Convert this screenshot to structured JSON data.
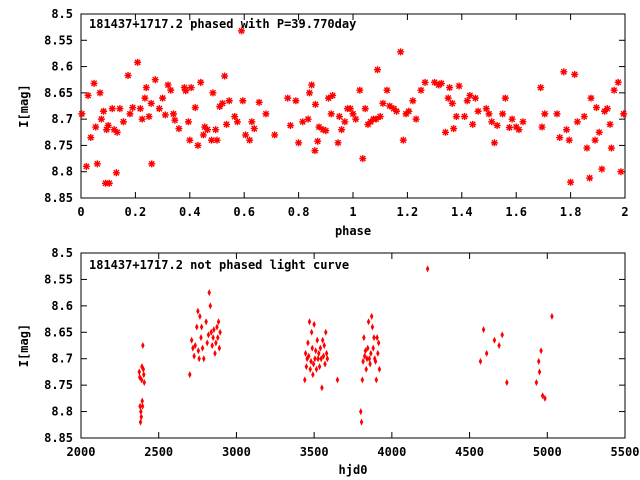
{
  "chart_data": [
    {
      "type": "scatter",
      "title": "181437+1717.2 phased with P=39.770day",
      "xlabel": "phase",
      "ylabel": "I[mag]",
      "xlim": [
        0,
        2
      ],
      "ylim": [
        8.5,
        8.85
      ],
      "y_inverted": true,
      "x_ticks": [
        0,
        0.2,
        0.4,
        0.6,
        0.8,
        1,
        1.2,
        1.4,
        1.6,
        1.8,
        2
      ],
      "x_tick_labels": [
        "0",
        "0.2",
        "0.4",
        "0.6",
        "0.8",
        "1",
        "1.2",
        "1.4",
        "1.6",
        "1.8",
        "2"
      ],
      "y_ticks": [
        8.5,
        8.55,
        8.6,
        8.65,
        8.7,
        8.75,
        8.8,
        8.85
      ],
      "y_tick_labels": [
        "8.5",
        "8.55",
        "8.6",
        "8.65",
        "8.7",
        "8.75",
        "8.8",
        "8.85"
      ],
      "grid": false,
      "marker": "star",
      "color": "#ff0000",
      "points": [
        [
          0.003,
          8.69
        ],
        [
          0.02,
          8.79
        ],
        [
          0.026,
          8.655
        ],
        [
          0.036,
          8.735
        ],
        [
          0.048,
          8.632
        ],
        [
          0.054,
          8.715
        ],
        [
          0.06,
          8.785
        ],
        [
          0.07,
          8.65
        ],
        [
          0.075,
          8.7
        ],
        [
          0.083,
          8.685
        ],
        [
          0.09,
          8.822
        ],
        [
          0.094,
          8.72
        ],
        [
          0.1,
          8.712
        ],
        [
          0.104,
          8.822
        ],
        [
          0.115,
          8.68
        ],
        [
          0.122,
          8.72
        ],
        [
          0.13,
          8.802
        ],
        [
          0.133,
          8.725
        ],
        [
          0.143,
          8.68
        ],
        [
          0.156,
          8.705
        ],
        [
          0.173,
          8.617
        ],
        [
          0.18,
          8.69
        ],
        [
          0.19,
          8.678
        ],
        [
          0.208,
          8.592
        ],
        [
          0.218,
          8.68
        ],
        [
          0.225,
          8.7
        ],
        [
          0.235,
          8.66
        ],
        [
          0.24,
          8.64
        ],
        [
          0.25,
          8.695
        ],
        [
          0.258,
          8.67
        ],
        [
          0.26,
          8.785
        ],
        [
          0.273,
          8.625
        ],
        [
          0.288,
          8.68
        ],
        [
          0.3,
          8.66
        ],
        [
          0.31,
          8.692
        ],
        [
          0.32,
          8.635
        ],
        [
          0.33,
          8.645
        ],
        [
          0.34,
          8.69
        ],
        [
          0.345,
          8.702
        ],
        [
          0.36,
          8.718
        ],
        [
          0.38,
          8.64
        ],
        [
          0.385,
          8.646
        ],
        [
          0.395,
          8.705
        ],
        [
          0.4,
          8.74
        ],
        [
          0.405,
          8.64
        ],
        [
          0.42,
          8.678
        ],
        [
          0.43,
          8.75
        ],
        [
          0.44,
          8.63
        ],
        [
          0.45,
          8.73
        ],
        [
          0.455,
          8.715
        ],
        [
          0.465,
          8.72
        ],
        [
          0.48,
          8.74
        ],
        [
          0.485,
          8.65
        ],
        [
          0.495,
          8.72
        ],
        [
          0.5,
          8.74
        ],
        [
          0.51,
          8.676
        ],
        [
          0.52,
          8.67
        ],
        [
          0.528,
          8.618
        ],
        [
          0.535,
          8.71
        ],
        [
          0.545,
          8.665
        ],
        [
          0.565,
          8.695
        ],
        [
          0.575,
          8.705
        ],
        [
          0.59,
          8.532
        ],
        [
          0.595,
          8.665
        ],
        [
          0.605,
          8.73
        ],
        [
          0.62,
          8.74
        ],
        [
          0.628,
          8.705
        ],
        [
          0.637,
          8.718
        ],
        [
          0.655,
          8.668
        ],
        [
          0.68,
          8.69
        ],
        [
          0.712,
          8.73
        ],
        [
          0.76,
          8.66
        ],
        [
          0.77,
          8.712
        ],
        [
          0.79,
          8.665
        ],
        [
          0.8,
          8.745
        ],
        [
          0.815,
          8.705
        ],
        [
          0.835,
          8.7
        ],
        [
          0.84,
          8.65
        ],
        [
          0.848,
          8.635
        ],
        [
          0.86,
          8.76
        ],
        [
          0.862,
          8.672
        ],
        [
          0.87,
          8.742
        ],
        [
          0.875,
          8.715
        ],
        [
          0.89,
          8.72
        ],
        [
          0.9,
          8.722
        ],
        [
          0.91,
          8.66
        ],
        [
          0.92,
          8.69
        ],
        [
          0.925,
          8.655
        ],
        [
          0.945,
          8.745
        ],
        [
          0.95,
          8.695
        ],
        [
          0.958,
          8.72
        ],
        [
          0.97,
          8.705
        ],
        [
          0.98,
          8.68
        ],
        [
          0.99,
          8.68
        ],
        [
          1.0,
          8.69
        ],
        [
          1.01,
          8.7
        ],
        [
          1.025,
          8.645
        ],
        [
          1.036,
          8.775
        ],
        [
          1.045,
          8.68
        ],
        [
          1.055,
          8.71
        ],
        [
          1.065,
          8.705
        ],
        [
          1.075,
          8.7
        ],
        [
          1.085,
          8.7
        ],
        [
          1.09,
          8.606
        ],
        [
          1.1,
          8.695
        ],
        [
          1.11,
          8.67
        ],
        [
          1.125,
          8.645
        ],
        [
          1.135,
          8.675
        ],
        [
          1.15,
          8.68
        ],
        [
          1.16,
          8.685
        ],
        [
          1.175,
          8.572
        ],
        [
          1.185,
          8.74
        ],
        [
          1.195,
          8.69
        ],
        [
          1.205,
          8.685
        ],
        [
          1.22,
          8.665
        ],
        [
          1.232,
          8.7
        ],
        [
          1.25,
          8.645
        ],
        [
          1.265,
          8.63
        ],
        [
          1.3,
          8.63
        ],
        [
          1.315,
          8.635
        ],
        [
          1.325,
          8.632
        ],
        [
          1.34,
          8.725
        ],
        [
          1.35,
          8.66
        ],
        [
          1.355,
          8.64
        ],
        [
          1.365,
          8.67
        ],
        [
          1.37,
          8.718
        ],
        [
          1.38,
          8.695
        ],
        [
          1.39,
          8.637
        ],
        [
          1.41,
          8.695
        ],
        [
          1.42,
          8.665
        ],
        [
          1.43,
          8.655
        ],
        [
          1.44,
          8.71
        ],
        [
          1.45,
          8.66
        ],
        [
          1.46,
          8.685
        ],
        [
          1.49,
          8.68
        ],
        [
          1.5,
          8.69
        ],
        [
          1.51,
          8.705
        ],
        [
          1.52,
          8.745
        ],
        [
          1.53,
          8.712
        ],
        [
          1.55,
          8.69
        ],
        [
          1.56,
          8.66
        ],
        [
          1.575,
          8.716
        ],
        [
          1.585,
          8.7
        ],
        [
          1.6,
          8.715
        ],
        [
          1.61,
          8.72
        ],
        [
          1.625,
          8.705
        ],
        [
          1.69,
          8.64
        ],
        [
          1.695,
          8.715
        ],
        [
          1.705,
          8.69
        ],
        [
          1.75,
          8.69
        ],
        [
          1.76,
          8.735
        ],
        [
          1.775,
          8.61
        ],
        [
          1.785,
          8.72
        ],
        [
          1.795,
          8.74
        ],
        [
          1.8,
          8.82
        ],
        [
          1.815,
          8.615
        ],
        [
          1.825,
          8.705
        ],
        [
          1.85,
          8.695
        ],
        [
          1.86,
          8.755
        ],
        [
          1.87,
          8.812
        ],
        [
          1.875,
          8.66
        ],
        [
          1.89,
          8.74
        ],
        [
          1.895,
          8.678
        ],
        [
          1.905,
          8.725
        ],
        [
          1.915,
          8.795
        ],
        [
          1.925,
          8.685
        ],
        [
          1.935,
          8.68
        ],
        [
          1.945,
          8.71
        ],
        [
          1.95,
          8.755
        ],
        [
          1.96,
          8.645
        ],
        [
          1.975,
          8.63
        ],
        [
          1.985,
          8.8
        ],
        [
          1.995,
          8.69
        ]
      ]
    },
    {
      "type": "scatter",
      "title": "181437+1717.2 not phased light curve",
      "xlabel": "hjd0",
      "ylabel": "I[mag]",
      "xlim": [
        2000,
        5500
      ],
      "ylim": [
        8.5,
        8.85
      ],
      "y_inverted": true,
      "x_ticks": [
        2000,
        2500,
        3000,
        3500,
        4000,
        4500,
        5000,
        5500
      ],
      "x_tick_labels": [
        "2000",
        "2500",
        "3000",
        "3500",
        "4000",
        "4500",
        "5000",
        "5500"
      ],
      "y_ticks": [
        8.5,
        8.55,
        8.6,
        8.65,
        8.7,
        8.75,
        8.8,
        8.85
      ],
      "y_tick_labels": [
        "8.5",
        "8.55",
        "8.6",
        "8.65",
        "8.7",
        "8.75",
        "8.8",
        "8.85"
      ],
      "grid": false,
      "marker": "diamond",
      "color": "#ff0000",
      "points": [
        [
          2375,
          8.725
        ],
        [
          2378,
          8.735
        ],
        [
          2380,
          8.79
        ],
        [
          2383,
          8.82
        ],
        [
          2385,
          8.8
        ],
        [
          2388,
          8.81
        ],
        [
          2390,
          8.74
        ],
        [
          2392,
          8.715
        ],
        [
          2394,
          8.78
        ],
        [
          2396,
          8.79
        ],
        [
          2398,
          8.675
        ],
        [
          2401,
          8.72
        ],
        [
          2404,
          8.73
        ],
        [
          2407,
          8.745
        ],
        [
          2700,
          8.73
        ],
        [
          2712,
          8.665
        ],
        [
          2720,
          8.68
        ],
        [
          2728,
          8.695
        ],
        [
          2735,
          8.675
        ],
        [
          2745,
          8.64
        ],
        [
          2752,
          8.61
        ],
        [
          2755,
          8.685
        ],
        [
          2760,
          8.7
        ],
        [
          2765,
          8.62
        ],
        [
          2772,
          8.66
        ],
        [
          2776,
          8.64
        ],
        [
          2782,
          8.68
        ],
        [
          2790,
          8.7
        ],
        [
          2805,
          8.63
        ],
        [
          2812,
          8.67
        ],
        [
          2820,
          8.655
        ],
        [
          2825,
          8.575
        ],
        [
          2832,
          8.6
        ],
        [
          2838,
          8.65
        ],
        [
          2844,
          8.675
        ],
        [
          2850,
          8.66
        ],
        [
          2855,
          8.645
        ],
        [
          2862,
          8.69
        ],
        [
          2868,
          8.67
        ],
        [
          2875,
          8.64
        ],
        [
          2880,
          8.66
        ],
        [
          2885,
          8.63
        ],
        [
          2890,
          8.68
        ],
        [
          2895,
          8.65
        ],
        [
          3440,
          8.74
        ],
        [
          3445,
          8.69
        ],
        [
          3450,
          8.715
        ],
        [
          3455,
          8.7
        ],
        [
          3460,
          8.67
        ],
        [
          3465,
          8.695
        ],
        [
          3470,
          8.63
        ],
        [
          3475,
          8.72
        ],
        [
          3480,
          8.705
        ],
        [
          3484,
          8.65
        ],
        [
          3488,
          8.68
        ],
        [
          3492,
          8.73
        ],
        [
          3496,
          8.71
        ],
        [
          3500,
          8.635
        ],
        [
          3505,
          8.7
        ],
        [
          3510,
          8.685
        ],
        [
          3515,
          8.72
        ],
        [
          3520,
          8.665
        ],
        [
          3525,
          8.7
        ],
        [
          3530,
          8.69
        ],
        [
          3535,
          8.715
        ],
        [
          3540,
          8.68
        ],
        [
          3545,
          8.7
        ],
        [
          3550,
          8.755
        ],
        [
          3555,
          8.665
        ],
        [
          3560,
          8.695
        ],
        [
          3565,
          8.675
        ],
        [
          3570,
          8.71
        ],
        [
          3575,
          8.65
        ],
        [
          3580,
          8.69
        ],
        [
          3585,
          8.7
        ],
        [
          3650,
          8.74
        ],
        [
          3800,
          8.8
        ],
        [
          3805,
          8.82
        ],
        [
          3810,
          8.74
        ],
        [
          3815,
          8.705
        ],
        [
          3820,
          8.66
        ],
        [
          3825,
          8.695
        ],
        [
          3830,
          8.685
        ],
        [
          3835,
          8.72
        ],
        [
          3840,
          8.7
        ],
        [
          3845,
          8.68
        ],
        [
          3850,
          8.63
        ],
        [
          3855,
          8.7
        ],
        [
          3860,
          8.71
        ],
        [
          3865,
          8.69
        ],
        [
          3870,
          8.62
        ],
        [
          3875,
          8.64
        ],
        [
          3880,
          8.68
        ],
        [
          3885,
          8.66
        ],
        [
          3890,
          8.7
        ],
        [
          3895,
          8.705
        ],
        [
          3900,
          8.74
        ],
        [
          3905,
          8.66
        ],
        [
          3910,
          8.69
        ],
        [
          3915,
          8.67
        ],
        [
          3920,
          8.72
        ],
        [
          4230,
          8.53
        ],
        [
          4570,
          8.705
        ],
        [
          4590,
          8.645
        ],
        [
          4610,
          8.69
        ],
        [
          4660,
          8.665
        ],
        [
          4690,
          8.675
        ],
        [
          4710,
          8.655
        ],
        [
          4740,
          8.745
        ],
        [
          4930,
          8.745
        ],
        [
          4945,
          8.705
        ],
        [
          4950,
          8.725
        ],
        [
          4960,
          8.685
        ],
        [
          4970,
          8.77
        ],
        [
          4985,
          8.775
        ],
        [
          5030,
          8.62
        ]
      ]
    }
  ]
}
